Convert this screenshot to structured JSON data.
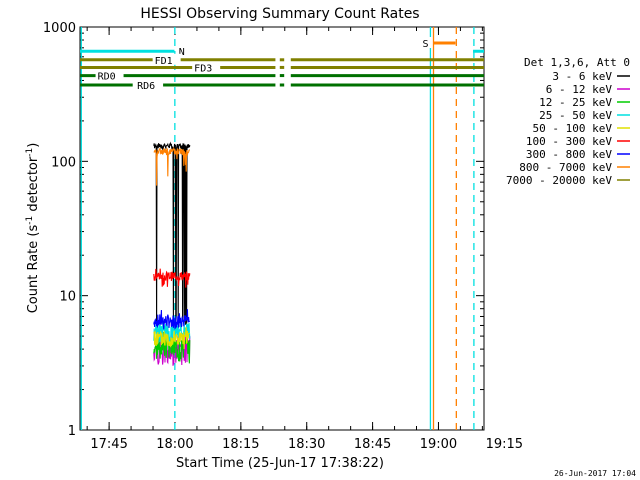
{
  "chart_data": {
    "type": "line",
    "title": "HESSI Observing Summary Count Rates",
    "xlabel": "Start Time (25-Jun-17 17:38:22)",
    "ylabel_main": "Count Rate (s",
    "ylabel_sup1": "-1",
    "ylabel_mid": " detector",
    "ylabel_sup2": "-1",
    "ylabel_end": ")",
    "yscale": "log",
    "ylim": [
      1,
      1000
    ],
    "xlim_minutes": [
      0,
      92
    ],
    "x_ticks": [
      {
        "label": "17:45",
        "min": 6.63
      },
      {
        "label": "18:00",
        "min": 21.63
      },
      {
        "label": "18:15",
        "min": 36.63
      },
      {
        "label": "18:30",
        "min": 51.63
      },
      {
        "label": "18:45",
        "min": 66.63
      },
      {
        "label": "19:00",
        "min": 81.63
      },
      {
        "label": "19:15",
        "min": 96.63
      }
    ],
    "y_ticks": [
      {
        "label": "1",
        "value": 1
      },
      {
        "label": "10",
        "value": 10
      },
      {
        "label": "100",
        "value": 100
      },
      {
        "label": "1000",
        "value": 1000
      }
    ],
    "legend_header": "Det 1,3,6, Att 0",
    "series": [
      {
        "name": "3 - 6 keV",
        "color": "#000000",
        "seed": 1,
        "base": 130,
        "jit": 0.05,
        "lo": 6,
        "hi": 8
      },
      {
        "name": "6 - 12 keV",
        "color": "#cc00cc",
        "seed": 2,
        "base": 4,
        "jit": 0.25,
        "lo": 3,
        "hi": 5.5
      },
      {
        "name": "12 - 25 keV",
        "color": "#00cc00",
        "seed": 3,
        "base": 4.2,
        "jit": 0.2,
        "lo": 3,
        "hi": 5.5
      },
      {
        "name": "25 - 50 keV",
        "color": "#00e0e0",
        "seed": 4,
        "base": 5.5,
        "jit": 0.18,
        "lo": 4.5,
        "hi": 7
      },
      {
        "name": "50 - 100 keV",
        "color": "#e0e000",
        "seed": 5,
        "base": 4.8,
        "jit": 0.15,
        "lo": 4,
        "hi": 6
      },
      {
        "name": "100 - 300 keV",
        "color": "#ff0000",
        "seed": 6,
        "base": 14,
        "jit": 0.08,
        "lo": 11,
        "hi": 16
      },
      {
        "name": "300 - 800 keV",
        "color": "#0000ff",
        "seed": 7,
        "base": 6.5,
        "jit": 0.12,
        "lo": 5.5,
        "hi": 8
      },
      {
        "name": "800 - 7000 keV",
        "color": "#ff8000",
        "seed": 8,
        "base": 118,
        "jit": 0.06,
        "lo": 65,
        "hi": 130
      },
      {
        "name": "7000 - 20000 keV",
        "color": "#808000",
        "seed": 9,
        "base": 0,
        "jit": 0,
        "lo": 0,
        "hi": 0
      }
    ],
    "data_interval_min": [
      16.8,
      25.0
    ],
    "flag_bars": [
      {
        "label": "N",
        "color": "#00e0e0",
        "y": 660,
        "segments": [
          [
            0,
            21.5
          ],
          [
            89.5,
            92
          ]
        ],
        "label_at": 22.5
      },
      {
        "label": "FD1",
        "color": "#808000",
        "y": 570,
        "segments": [
          [
            0,
            44.5
          ],
          [
            45.5,
            46.5
          ],
          [
            48,
            92
          ]
        ],
        "label_at": 17
      },
      {
        "label": "FD3",
        "color": "#808000",
        "y": 500,
        "segments": [
          [
            0,
            44.5
          ],
          [
            45.5,
            46.5
          ],
          [
            48,
            92
          ]
        ],
        "label_at": 26
      },
      {
        "label": "RD0",
        "color": "#007000",
        "y": 435,
        "segments": [
          [
            0,
            44.5
          ],
          [
            45.5,
            46.5
          ],
          [
            48,
            92
          ]
        ],
        "label_at": 4
      },
      {
        "label": "RD6",
        "color": "#007000",
        "y": 370,
        "segments": [
          [
            0,
            12
          ],
          [
            14,
            44.5
          ],
          [
            45.5,
            46.5
          ],
          [
            48,
            92
          ]
        ],
        "label_at": 13
      },
      {
        "label": "S",
        "color": "#ff8000",
        "y": 760,
        "segments": [
          [
            80.5,
            85.5
          ]
        ],
        "label_at": 78
      }
    ],
    "vlines": [
      {
        "min": 0.3,
        "color": "#00e0e0",
        "dash": false
      },
      {
        "min": 21.6,
        "color": "#00e0e0",
        "dash": true
      },
      {
        "min": 79.8,
        "color": "#00e0e0",
        "dash": false
      },
      {
        "min": 80.5,
        "color": "#ff8000",
        "dash": false
      },
      {
        "min": 85.7,
        "color": "#ff8000",
        "dash": true
      },
      {
        "min": 89.7,
        "color": "#00e0e0",
        "dash": true
      }
    ]
  },
  "footer_date": "26-Jun-2017 17:04"
}
